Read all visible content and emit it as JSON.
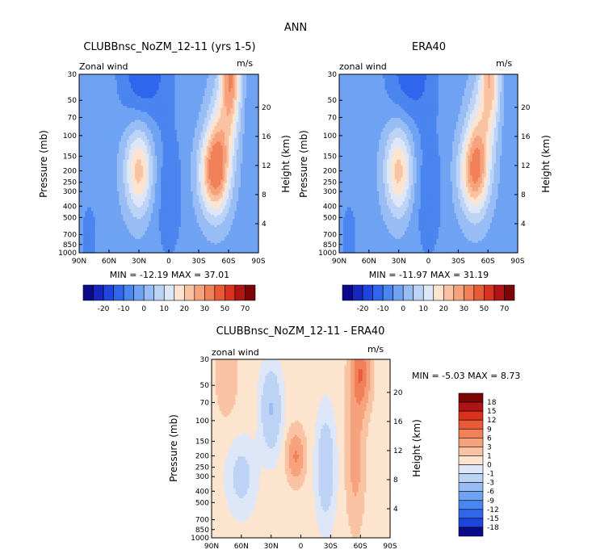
{
  "figure_title": "ANN",
  "panels": [
    {
      "title": "CLUBBnsc_NoZM_12-11 (yrs 1-5)",
      "field_label": "Zonal wind",
      "units": "m/s",
      "stats": "MIN = -12.19   MAX =  37.01"
    },
    {
      "title": "ERA40",
      "field_label": "zonal wind",
      "units": "m/s",
      "stats": "MIN = -11.97   MAX =  31.19"
    },
    {
      "title": "CLUBBnsc_NoZM_12-11 - ERA40",
      "field_label": "zonal wind",
      "units": "m/s",
      "stats": "MIN =  -5.03   MAX =   8.73"
    }
  ],
  "axes": {
    "ylabel_left": "Pressure (mb)",
    "ylabel_right": "Height (km)",
    "pressure_ticks": [
      "30",
      "50",
      "70",
      "100",
      "150",
      "200",
      "250",
      "300",
      "400",
      "500",
      "700",
      "850",
      "1000"
    ],
    "pressure_values": [
      30,
      50,
      70,
      100,
      150,
      200,
      250,
      300,
      400,
      500,
      700,
      850,
      1000
    ],
    "height_ticks": [
      "20",
      "16",
      "12",
      "8",
      "4"
    ],
    "height_values": [
      20,
      16,
      12,
      8,
      4
    ],
    "lat_ticks": [
      "90N",
      "60N",
      "30N",
      "0",
      "30S",
      "60S",
      "90S"
    ],
    "lat_values": [
      90,
      60,
      30,
      0,
      -30,
      -60,
      -90
    ]
  },
  "colorbar_main": {
    "labels": [
      "-20",
      "-10",
      "0",
      "10",
      "20",
      "30",
      "50",
      "70"
    ],
    "colors": [
      "#0a0a8a",
      "#1726bd",
      "#1f45de",
      "#2f66ec",
      "#4a85f0",
      "#6fa2f3",
      "#98bdf4",
      "#bcd3f5",
      "#dde7f7",
      "#fde4cf",
      "#f9c3a3",
      "#f6a27c",
      "#f08058",
      "#e95a36",
      "#d9321f",
      "#b01515",
      "#7a0606"
    ]
  },
  "colorbar_diff": {
    "labels": [
      "18",
      "15",
      "12",
      "9",
      "6",
      "3",
      "1",
      "0",
      "-1",
      "-3",
      "-6",
      "-9",
      "-12",
      "-15",
      "-18"
    ],
    "colors": [
      "#7a0606",
      "#b01515",
      "#d9321f",
      "#e95a36",
      "#f08058",
      "#f6a27c",
      "#f9c3a3",
      "#fde4cf",
      "#dde7f7",
      "#bcd3f5",
      "#98bdf4",
      "#6fa2f3",
      "#4a85f0",
      "#2f66ec",
      "#1f45de",
      "#0a0a8a"
    ]
  },
  "chart_data": [
    {
      "type": "heatmap",
      "title": "CLUBBnsc_NoZM_12-11 (yrs 1-5)",
      "field": "Zonal wind",
      "units": "m/s",
      "x_axis": "latitude (90N to 90S)",
      "y_axis": "pressure (mb), log scale, 30-1000",
      "xlim": [
        90,
        -90
      ],
      "ylim": [
        1000,
        30
      ],
      "min": -12.19,
      "max": 37.01,
      "features": [
        {
          "lat": 30,
          "p": 200,
          "value": 22
        },
        {
          "lat": -45,
          "p": 200,
          "value": 30
        },
        {
          "lat": -65,
          "p": 30,
          "value": 35
        },
        {
          "lat": 30,
          "p": 30,
          "value": -12
        },
        {
          "lat": 0,
          "p": 300,
          "value": -5
        }
      ]
    },
    {
      "type": "heatmap",
      "title": "ERA40",
      "field": "zonal wind",
      "units": "m/s",
      "x_axis": "latitude (90N to 90S)",
      "y_axis": "pressure (mb), log scale, 30-1000",
      "xlim": [
        90,
        -90
      ],
      "ylim": [
        1000,
        30
      ],
      "min": -11.97,
      "max": 31.19,
      "features": [
        {
          "lat": 30,
          "p": 200,
          "value": 22
        },
        {
          "lat": -45,
          "p": 200,
          "value": 28
        },
        {
          "lat": -65,
          "p": 30,
          "value": 30
        },
        {
          "lat": 20,
          "p": 30,
          "value": -11
        },
        {
          "lat": 0,
          "p": 300,
          "value": -5
        }
      ]
    },
    {
      "type": "heatmap",
      "title": "CLUBBnsc_NoZM_12-11 - ERA40",
      "field": "zonal wind",
      "units": "m/s",
      "x_axis": "latitude (90N to 90S)",
      "y_axis": "pressure (mb), log scale, 30-1000",
      "xlim": [
        90,
        -90
      ],
      "ylim": [
        1000,
        30
      ],
      "min": -5.03,
      "max": 8.73,
      "features": [
        {
          "lat": -60,
          "p": 40,
          "value": 8
        },
        {
          "lat": 5,
          "p": 200,
          "value": 6
        },
        {
          "lat": 30,
          "p": 80,
          "value": -3
        },
        {
          "lat": -25,
          "p": 250,
          "value": -3
        },
        {
          "lat": 70,
          "p": 40,
          "value": 1
        }
      ]
    }
  ]
}
